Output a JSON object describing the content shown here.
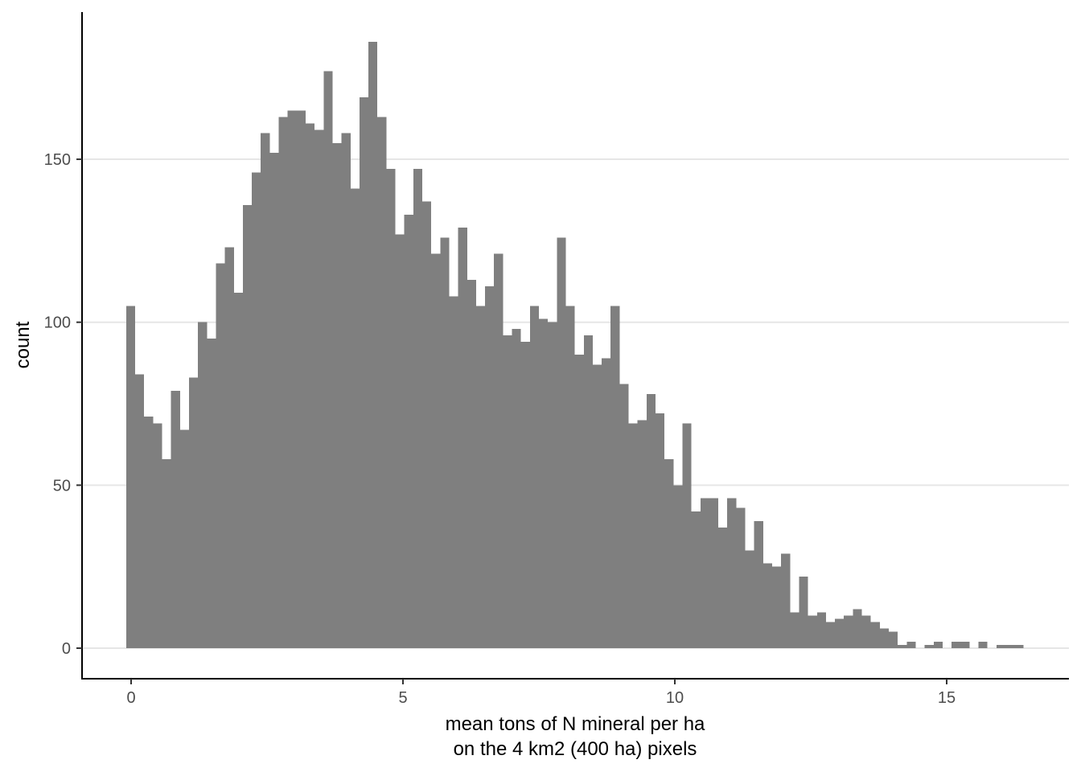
{
  "chart_data": {
    "type": "bar",
    "xlabel_lines": [
      "mean tons of N mineral per ha",
      "on the 4 km2 (400 ha) pixels"
    ],
    "ylabel": "count",
    "x_ticks": [
      0,
      5,
      10,
      15
    ],
    "x_tick_labels": [
      "0",
      "5",
      "10",
      "15"
    ],
    "y_ticks": [
      0,
      50,
      100,
      150
    ],
    "y_tick_labels": [
      "0",
      "50",
      "100",
      "150"
    ],
    "xlim": [
      -0.9,
      17.2
    ],
    "ylim": [
      0,
      190
    ],
    "bin_start": -0.09,
    "bin_width": 0.165,
    "values": [
      105,
      84,
      71,
      69,
      58,
      79,
      67,
      83,
      100,
      95,
      118,
      123,
      109,
      136,
      146,
      158,
      152,
      163,
      165,
      165,
      161,
      159,
      177,
      155,
      158,
      141,
      169,
      186,
      163,
      147,
      127,
      133,
      147,
      137,
      121,
      126,
      108,
      129,
      113,
      105,
      111,
      121,
      96,
      98,
      94,
      105,
      101,
      100,
      126,
      105,
      90,
      96,
      87,
      89,
      105,
      81,
      69,
      70,
      78,
      72,
      58,
      50,
      69,
      42,
      46,
      46,
      37,
      46,
      43,
      30,
      39,
      26,
      25,
      29,
      11,
      22,
      10,
      11,
      8,
      9,
      10,
      12,
      10,
      8,
      6,
      5,
      1,
      2,
      0,
      1,
      2,
      0,
      2,
      2,
      0,
      2,
      0,
      1,
      1,
      1,
      0
    ],
    "grid": "horizontal major",
    "bar_color": "#7f7f7f"
  }
}
